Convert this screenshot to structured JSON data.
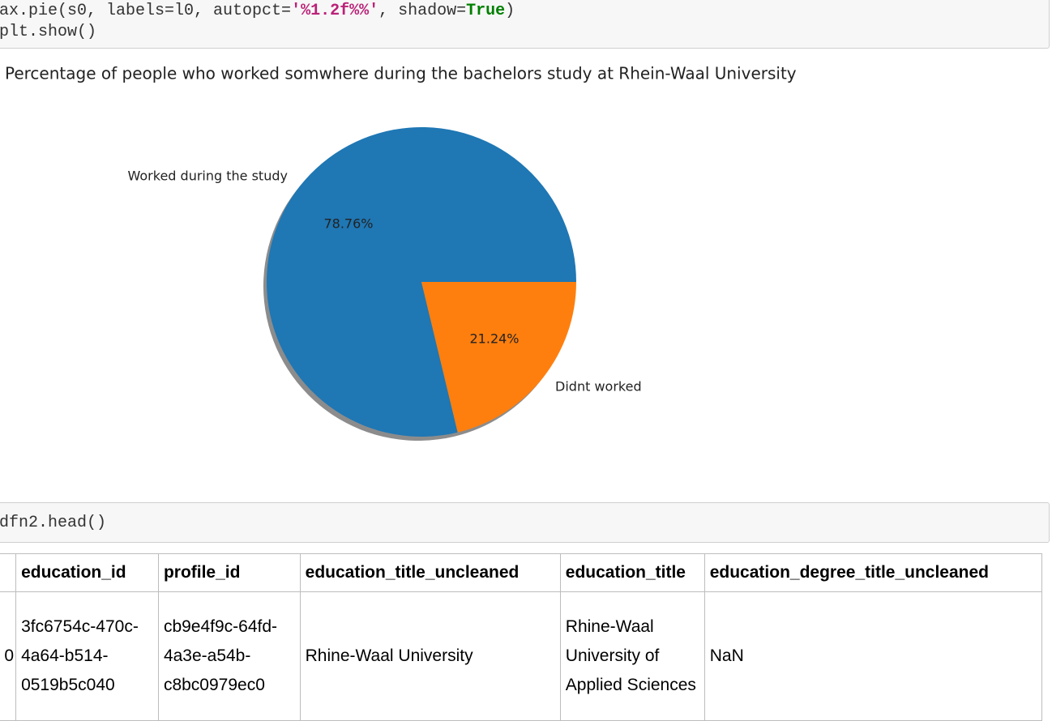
{
  "cells": [
    {
      "lines": [
        [
          "ax.pie(s0, labels=l0, autopct=",
          "'%1.2f%%'",
          ", shadow=",
          "True",
          ")"
        ],
        [
          "plt.show()"
        ]
      ]
    },
    {
      "lines": [
        [
          "dfn2.head()"
        ]
      ]
    }
  ],
  "chart_data": {
    "type": "pie",
    "title": "Percentage of people who worked somwhere during the bachelors study at Rhein-Waal University",
    "categories": [
      "Worked during the study",
      "Didnt worked"
    ],
    "values": [
      78.76,
      21.24
    ],
    "value_labels": [
      "78.76%",
      "21.24%"
    ],
    "colors": [
      "#1f77b4",
      "#ff7f0e"
    ],
    "shadow": true
  },
  "table": {
    "columns": [
      "education_id",
      "profile_id",
      "education_title_uncleaned",
      "education_title",
      "education_degree_title_uncleaned"
    ],
    "rows": [
      {
        "index": "0",
        "cells": [
          "3fc6754c-470c-4a64-b514-0519b5c040",
          "cb9e4f9c-64fd-4a3e-a54b-c8bc0979ec0",
          "Rhine-Waal University",
          "Rhine-Waal University of Applied Sciences",
          "NaN"
        ]
      }
    ]
  }
}
